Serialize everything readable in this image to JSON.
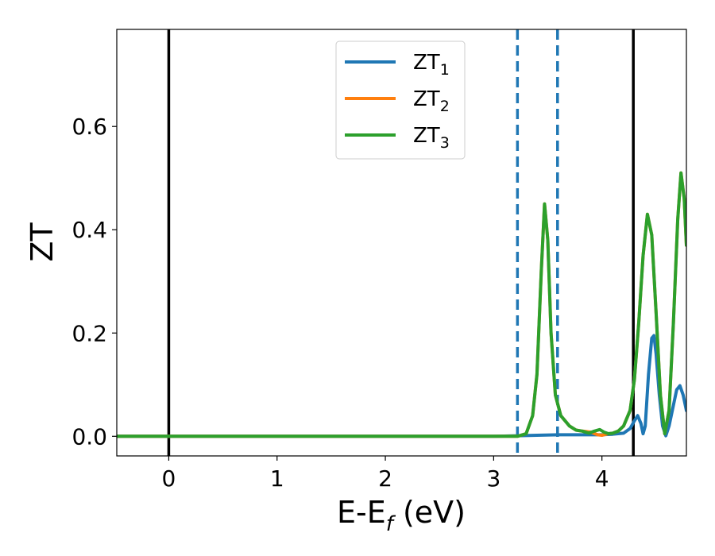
{
  "chart_data": {
    "type": "line",
    "xlabel": {
      "base": "E-E",
      "sub": "f",
      "rest": " (eV)"
    },
    "ylabel": "ZT",
    "xlim": [
      -0.48,
      4.78
    ],
    "ylim": [
      -0.038,
      0.788
    ],
    "xticks": [
      0,
      1,
      2,
      3,
      4
    ],
    "xtick_labels": [
      "0",
      "1",
      "2",
      "3",
      "4"
    ],
    "yticks": [
      0.0,
      0.2,
      0.4,
      0.6
    ],
    "ytick_labels": [
      "0.0",
      "0.2",
      "0.4",
      "0.6"
    ],
    "grid": false,
    "legend_position": "top-center",
    "vlines": [
      {
        "x": 0.0,
        "style": "solid",
        "color": "#000000"
      },
      {
        "x": 4.29,
        "style": "solid",
        "color": "#000000"
      },
      {
        "x": 3.22,
        "style": "dashed",
        "color": "#1f77b4"
      },
      {
        "x": 3.59,
        "style": "dashed",
        "color": "#1f77b4"
      }
    ],
    "series": [
      {
        "name": "ZT",
        "sub": "1",
        "color": "#1f77b4",
        "points": [
          [
            -0.48,
            0
          ],
          [
            3.0,
            0
          ],
          [
            3.22,
            0.001
          ],
          [
            3.4,
            0.002
          ],
          [
            3.6,
            0.003
          ],
          [
            3.8,
            0.003
          ],
          [
            4.0,
            0.003
          ],
          [
            4.1,
            0.004
          ],
          [
            4.2,
            0.006
          ],
          [
            4.26,
            0.015
          ],
          [
            4.3,
            0.03
          ],
          [
            4.33,
            0.04
          ],
          [
            4.36,
            0.025
          ],
          [
            4.38,
            0.005
          ],
          [
            4.4,
            0.02
          ],
          [
            4.43,
            0.12
          ],
          [
            4.46,
            0.19
          ],
          [
            4.48,
            0.195
          ],
          [
            4.5,
            0.16
          ],
          [
            4.53,
            0.08
          ],
          [
            4.56,
            0.02
          ],
          [
            4.59,
            0.001
          ],
          [
            4.62,
            0.02
          ],
          [
            4.66,
            0.06
          ],
          [
            4.69,
            0.09
          ],
          [
            4.72,
            0.098
          ],
          [
            4.75,
            0.08
          ],
          [
            4.78,
            0.05
          ]
        ]
      },
      {
        "name": "ZT",
        "sub": "2",
        "color": "#ff7f0e",
        "points": [
          [
            -0.48,
            0
          ],
          [
            3.22,
            0
          ],
          [
            3.3,
            0.005
          ],
          [
            3.36,
            0.04
          ],
          [
            3.4,
            0.12
          ],
          [
            3.44,
            0.32
          ],
          [
            3.47,
            0.45
          ],
          [
            3.5,
            0.38
          ],
          [
            3.53,
            0.2
          ],
          [
            3.57,
            0.08
          ],
          [
            3.62,
            0.04
          ],
          [
            3.7,
            0.02
          ],
          [
            3.76,
            0.012
          ],
          [
            3.82,
            0.01
          ],
          [
            3.9,
            0.008
          ],
          [
            3.96,
            0.003
          ],
          [
            4.0,
            0.002
          ],
          [
            4.06,
            0.005
          ],
          [
            4.1,
            0.006
          ],
          [
            4.15,
            0.01
          ],
          [
            4.2,
            0.02
          ],
          [
            4.26,
            0.05
          ],
          [
            4.3,
            0.11
          ],
          [
            4.34,
            0.22
          ],
          [
            4.38,
            0.35
          ],
          [
            4.42,
            0.43
          ],
          [
            4.46,
            0.39
          ],
          [
            4.5,
            0.24
          ],
          [
            4.54,
            0.08
          ],
          [
            4.58,
            0.005
          ],
          [
            4.62,
            0.05
          ],
          [
            4.66,
            0.22
          ],
          [
            4.7,
            0.42
          ],
          [
            4.73,
            0.51
          ],
          [
            4.76,
            0.46
          ],
          [
            4.78,
            0.37
          ]
        ]
      },
      {
        "name": "ZT",
        "sub": "3",
        "color": "#2ca02c",
        "points": [
          [
            -0.48,
            0
          ],
          [
            3.22,
            0
          ],
          [
            3.3,
            0.005
          ],
          [
            3.36,
            0.04
          ],
          [
            3.4,
            0.12
          ],
          [
            3.44,
            0.32
          ],
          [
            3.47,
            0.45
          ],
          [
            3.5,
            0.38
          ],
          [
            3.53,
            0.2
          ],
          [
            3.57,
            0.08
          ],
          [
            3.62,
            0.04
          ],
          [
            3.7,
            0.02
          ],
          [
            3.76,
            0.012
          ],
          [
            3.82,
            0.01
          ],
          [
            3.88,
            0.006
          ],
          [
            3.93,
            0.01
          ],
          [
            3.98,
            0.013
          ],
          [
            4.02,
            0.008
          ],
          [
            4.06,
            0.005
          ],
          [
            4.1,
            0.006
          ],
          [
            4.15,
            0.01
          ],
          [
            4.2,
            0.02
          ],
          [
            4.26,
            0.05
          ],
          [
            4.3,
            0.11
          ],
          [
            4.34,
            0.22
          ],
          [
            4.38,
            0.35
          ],
          [
            4.42,
            0.43
          ],
          [
            4.46,
            0.39
          ],
          [
            4.5,
            0.24
          ],
          [
            4.54,
            0.08
          ],
          [
            4.58,
            0.005
          ],
          [
            4.62,
            0.05
          ],
          [
            4.66,
            0.22
          ],
          [
            4.7,
            0.42
          ],
          [
            4.73,
            0.51
          ],
          [
            4.76,
            0.46
          ],
          [
            4.78,
            0.37
          ]
        ]
      }
    ]
  }
}
